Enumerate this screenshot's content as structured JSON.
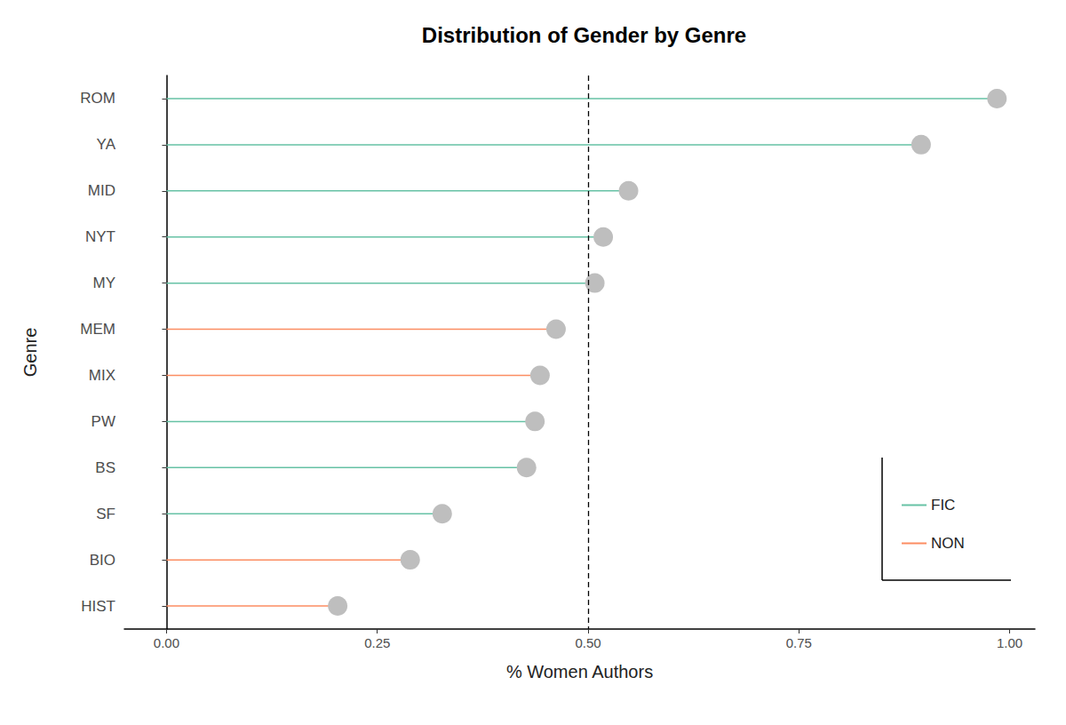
{
  "chart_data": {
    "type": "lollipop",
    "title": "Distribution of Gender by Genre",
    "x_label": "% Women Authors",
    "y_label": "Genre",
    "orientation": "horizontal",
    "categories": [
      "ROM",
      "YA",
      "MID",
      "NYT",
      "MY",
      "MEM",
      "MIX",
      "PW",
      "BS",
      "SF",
      "BIO",
      "HIST"
    ],
    "series": [
      {
        "name": "FIC",
        "color": "#66c2a5",
        "values": [
          0.985,
          0.895,
          0.548,
          0.518,
          0.508,
          null,
          null,
          0.437,
          0.427,
          0.327,
          null,
          null
        ]
      },
      {
        "name": "NON",
        "color": "#fc8d62",
        "values": [
          null,
          null,
          null,
          null,
          null,
          0.462,
          0.443,
          null,
          null,
          null,
          0.289,
          0.203
        ]
      }
    ],
    "reference_x": 0.5,
    "xlim": [
      -0.05,
      1.03
    ],
    "xticks": [
      {
        "value": 0,
        "label": "0.00"
      },
      {
        "value": 0.25,
        "label": "0.25"
      },
      {
        "value": 0.5,
        "label": "0.50"
      },
      {
        "value": 0.75,
        "label": "0.75"
      },
      {
        "value": 1,
        "label": "1.00"
      }
    ],
    "grid": false,
    "legend": "bottom-right",
    "data_labels": false
  }
}
